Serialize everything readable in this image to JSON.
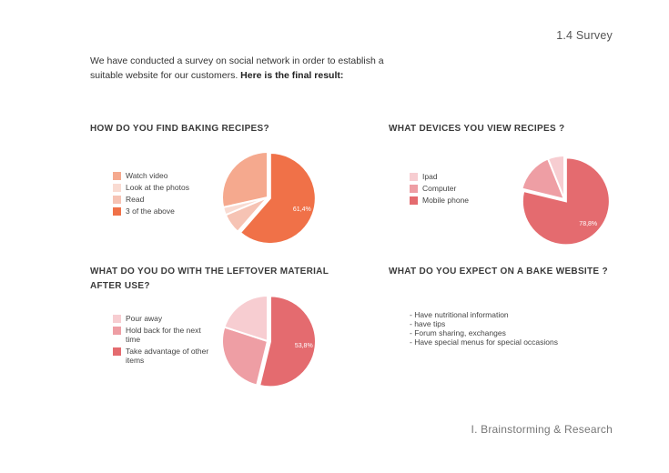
{
  "header": {
    "section": "1.4 Survey"
  },
  "intro": {
    "text": "We have conducted a survey on social network in order to establish a suitable website for our customers. ",
    "bold": "Here is the final result:"
  },
  "footer": {
    "text": "I. Brainstorming & Research"
  },
  "expect": {
    "title": "WHAT DO YOU EXPECT ON A BAKE WEBSITE ?",
    "items": [
      "- Have nutritional information",
      "- have tips",
      "- Forum sharing, exchanges",
      "- Have special menus for special occasions"
    ]
  },
  "chart_data": [
    {
      "type": "pie",
      "title": "HOW DO YOU FIND BAKING RECIPES?",
      "categories": [
        "Watch video",
        "Look at the photos",
        "Read",
        "3 of the above"
      ],
      "values": [
        28.5,
        2.8,
        7.3,
        61.4
      ],
      "colors": [
        "#f5a98e",
        "#f9dbd2",
        "#f6c3b4",
        "#f07148"
      ],
      "data_labels": [
        "",
        "",
        "",
        "61,4%"
      ],
      "legend_position": "left"
    },
    {
      "type": "pie",
      "title": "WHAT DEVICES YOU VIEW RECIPES ?",
      "categories": [
        "Ipad",
        "Computer",
        "Mobile phone"
      ],
      "values": [
        6.1,
        15.1,
        78.8
      ],
      "colors": [
        "#f7cdd1",
        "#ee9ea4",
        "#e46b6f"
      ],
      "data_labels": [
        "",
        "",
        "78,8%"
      ],
      "legend_position": "left"
    },
    {
      "type": "pie",
      "title": "WHAT DO YOU DO WITH THE LEFTOVER MATERIAL AFTER USE?",
      "categories": [
        "Pour away",
        "Hold back for the next time",
        "Take advantage of other items"
      ],
      "values": [
        20.0,
        26.2,
        53.8
      ],
      "colors": [
        "#f7cdd1",
        "#ee9ea4",
        "#e46b6f"
      ],
      "data_labels": [
        "",
        "",
        "53,8%"
      ],
      "legend_position": "left"
    }
  ]
}
